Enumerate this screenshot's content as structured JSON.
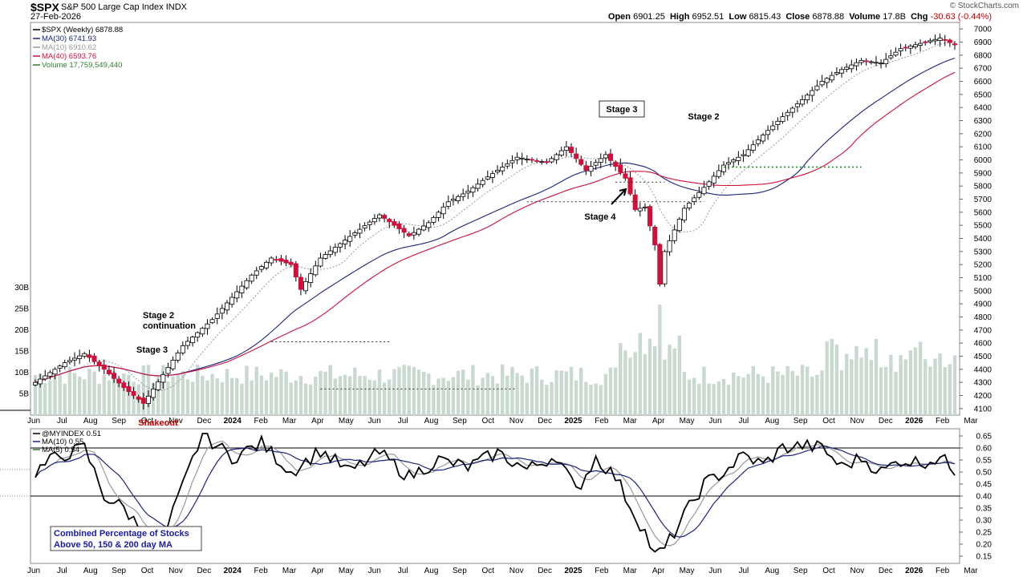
{
  "header": {
    "ticker": "$SPX",
    "name": "S&P 500 Large Cap Index",
    "exchange": "INDX",
    "date": "27-Feb-2026",
    "brand": "© StockCharts.com",
    "open_label": "Open",
    "open": "6901.25",
    "high_label": "High",
    "high": "6952.51",
    "low_label": "Low",
    "low": "6815.43",
    "close_label": "Close",
    "close": "6878.88",
    "volume_label": "Volume",
    "volume": "17.8B",
    "chg_label": "Chg",
    "chg": "-30.63 (-0.44%)"
  },
  "colors": {
    "up": "#ffffff",
    "down": "#d0103a",
    "ma30": "#1a237e",
    "ma10": "#999999",
    "ma40": "#d0103a",
    "volume": "#c9d9d0",
    "myindex": "#000000",
    "ma5": "#999999"
  },
  "chart_data": [
    {
      "type": "candlestick",
      "title": "$SPX (Weekly) 6878.88",
      "legend": [
        {
          "label": "$SPX (Weekly) 6878.88",
          "color": "#000000"
        },
        {
          "label": "MA(30) 6741.93",
          "color": "#1a237e"
        },
        {
          "label": "MA(10) 6910.62",
          "color": "#999999"
        },
        {
          "label": "MA(40) 6593.76",
          "color": "#d0103a"
        },
        {
          "label": "Volume 17,759,549,440",
          "color": "#2e7d32"
        }
      ],
      "yticks": [
        4100,
        4200,
        4300,
        4400,
        4500,
        4600,
        4700,
        4800,
        4900,
        5000,
        5100,
        5200,
        5300,
        5400,
        5500,
        5600,
        5700,
        5800,
        5900,
        6000,
        6100,
        6200,
        6300,
        6400,
        6500,
        6600,
        6700,
        6800,
        6900,
        7000
      ],
      "volume_ticks": [
        "5B",
        "10B",
        "15B",
        "20B",
        "25B",
        "30B"
      ],
      "xticks": [
        "Jun",
        "Jul",
        "Aug",
        "Sep",
        "Oct",
        "Nov",
        "Dec",
        "2024",
        "Feb",
        "Mar",
        "Apr",
        "May",
        "Jun",
        "Jul",
        "Aug",
        "Sep",
        "Oct",
        "Nov",
        "Dec",
        "2025",
        "Feb",
        "Mar",
        "Apr",
        "May",
        "Jun",
        "Jul",
        "Aug",
        "Sep",
        "Oct",
        "Nov",
        "Dec",
        "2026",
        "Feb",
        "Mar"
      ],
      "annotations": [
        "Stage 2 continuation",
        "Stage 3",
        "Shakeout",
        "Stage 3",
        "Stage 4",
        "Stage 2"
      ],
      "close_anchors": [
        [
          0,
          4300
        ],
        [
          6,
          4450
        ],
        [
          10,
          4520
        ],
        [
          14,
          4400
        ],
        [
          18,
          4260
        ],
        [
          22,
          4140
        ],
        [
          26,
          4360
        ],
        [
          30,
          4580
        ],
        [
          36,
          4780
        ],
        [
          44,
          5120
        ],
        [
          48,
          5250
        ],
        [
          52,
          5200
        ],
        [
          54,
          5010
        ],
        [
          58,
          5250
        ],
        [
          66,
          5470
        ],
        [
          70,
          5580
        ],
        [
          76,
          5420
        ],
        [
          80,
          5520
        ],
        [
          84,
          5680
        ],
        [
          88,
          5760
        ],
        [
          92,
          5870
        ],
        [
          98,
          6020
        ],
        [
          104,
          5980
        ],
        [
          108,
          6100
        ],
        [
          112,
          5920
        ],
        [
          116,
          6040
        ],
        [
          120,
          5860
        ],
        [
          122,
          5620
        ],
        [
          124,
          5640
        ],
        [
          126,
          5350
        ],
        [
          127,
          5050
        ],
        [
          128,
          5300
        ],
        [
          132,
          5630
        ],
        [
          136,
          5790
        ],
        [
          140,
          5960
        ],
        [
          144,
          6040
        ],
        [
          148,
          6190
        ],
        [
          152,
          6330
        ],
        [
          156,
          6460
        ],
        [
          160,
          6600
        ],
        [
          164,
          6690
        ],
        [
          168,
          6760
        ],
        [
          172,
          6740
        ],
        [
          176,
          6850
        ],
        [
          180,
          6890
        ],
        [
          184,
          6930
        ],
        [
          187,
          6879
        ]
      ],
      "ma30_last": 6741.93,
      "ma10_last": 6910.62,
      "ma40_last": 6593.76
    },
    {
      "type": "line",
      "title": "@MYINDEX 0.51",
      "legend": [
        {
          "label": "@MYINDEX 0.51",
          "color": "#000000"
        },
        {
          "label": "MA(10) 0.55",
          "color": "#1a237e"
        },
        {
          "label": "MA(5) 0.54",
          "color": "#2e7d32"
        }
      ],
      "note": "Combined Percentage of Stocks Above 50, 150 & 200 day MA",
      "note_lines": [
        "Combined Percentage of Stocks",
        "Above 50, 150 & 200 day MA"
      ],
      "yticks": [
        0.15,
        0.2,
        0.25,
        0.3,
        0.35,
        0.4,
        0.45,
        0.5,
        0.55,
        0.6,
        0.65
      ],
      "hlines": [
        0.6,
        0.4
      ],
      "value_anchors": [
        [
          0,
          0.5
        ],
        [
          4,
          0.56
        ],
        [
          10,
          0.6
        ],
        [
          14,
          0.4
        ],
        [
          18,
          0.35
        ],
        [
          22,
          0.25
        ],
        [
          26,
          0.22
        ],
        [
          30,
          0.44
        ],
        [
          34,
          0.66
        ],
        [
          40,
          0.56
        ],
        [
          46,
          0.62
        ],
        [
          52,
          0.5
        ],
        [
          58,
          0.59
        ],
        [
          64,
          0.5
        ],
        [
          70,
          0.58
        ],
        [
          76,
          0.48
        ],
        [
          82,
          0.55
        ],
        [
          88,
          0.52
        ],
        [
          94,
          0.58
        ],
        [
          100,
          0.51
        ],
        [
          106,
          0.57
        ],
        [
          110,
          0.42
        ],
        [
          114,
          0.56
        ],
        [
          118,
          0.48
        ],
        [
          122,
          0.32
        ],
        [
          124,
          0.25
        ],
        [
          126,
          0.15
        ],
        [
          128,
          0.18
        ],
        [
          132,
          0.32
        ],
        [
          136,
          0.45
        ],
        [
          140,
          0.5
        ],
        [
          144,
          0.57
        ],
        [
          148,
          0.53
        ],
        [
          152,
          0.6
        ],
        [
          156,
          0.61
        ],
        [
          160,
          0.6
        ],
        [
          164,
          0.52
        ],
        [
          168,
          0.56
        ],
        [
          172,
          0.5
        ],
        [
          176,
          0.55
        ],
        [
          180,
          0.54
        ],
        [
          184,
          0.56
        ],
        [
          187,
          0.51
        ]
      ]
    }
  ]
}
